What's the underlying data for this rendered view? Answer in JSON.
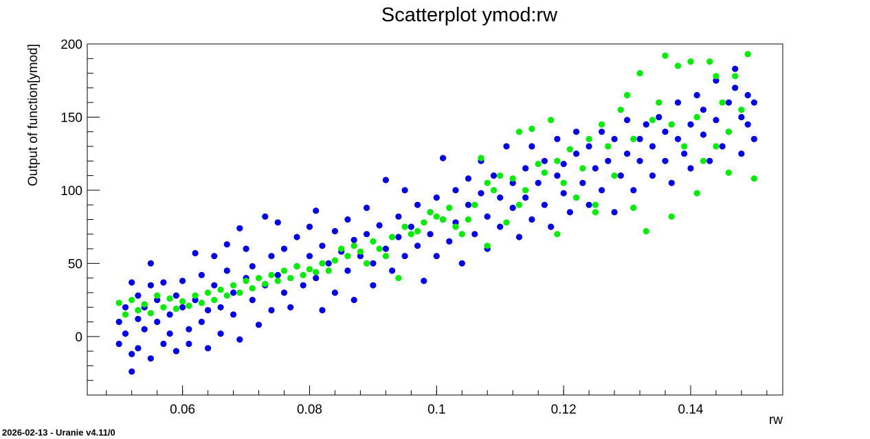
{
  "chart_data": {
    "type": "scatter",
    "title": "Scatterplot ymod:rw",
    "xlabel": "rw",
    "ylabel": "Output of function[ymod]",
    "xlim": [
      0.045,
      0.1545
    ],
    "ylim": [
      -40,
      200
    ],
    "xticks": [
      0.06,
      0.08,
      0.1,
      0.12,
      0.14
    ],
    "xtick_labels": [
      "0.06",
      "0.08",
      "0.1",
      "0.12",
      "0.14"
    ],
    "yticks": [
      0,
      50,
      100,
      150,
      200
    ],
    "ytick_labels": [
      "0",
      "50",
      "100",
      "150",
      "200"
    ],
    "grid": false,
    "legend": "none",
    "series": [
      {
        "color": "#0000ee",
        "points": [
          [
            0.05,
            10
          ],
          [
            0.05,
            -5
          ],
          [
            0.051,
            20
          ],
          [
            0.051,
            2
          ],
          [
            0.052,
            37
          ],
          [
            0.052,
            -12
          ],
          [
            0.052,
            -24
          ],
          [
            0.053,
            12
          ],
          [
            0.053,
            28
          ],
          [
            0.053,
            -8
          ],
          [
            0.054,
            5
          ],
          [
            0.054,
            20
          ],
          [
            0.055,
            50
          ],
          [
            0.055,
            -15
          ],
          [
            0.055,
            35
          ],
          [
            0.056,
            25
          ],
          [
            0.056,
            10
          ],
          [
            0.057,
            -5
          ],
          [
            0.057,
            37
          ],
          [
            0.058,
            15
          ],
          [
            0.058,
            2
          ],
          [
            0.059,
            28
          ],
          [
            0.059,
            -10
          ],
          [
            0.06,
            20
          ],
          [
            0.06,
            38
          ],
          [
            0.061,
            5
          ],
          [
            0.061,
            -5
          ],
          [
            0.062,
            57
          ],
          [
            0.062,
            25
          ],
          [
            0.063,
            10
          ],
          [
            0.063,
            42
          ],
          [
            0.064,
            18
          ],
          [
            0.064,
            -8
          ],
          [
            0.065,
            35
          ],
          [
            0.065,
            55
          ],
          [
            0.066,
            20
          ],
          [
            0.066,
            2
          ],
          [
            0.067,
            45
          ],
          [
            0.067,
            63
          ],
          [
            0.068,
            15
          ],
          [
            0.068,
            30
          ],
          [
            0.069,
            74
          ],
          [
            0.069,
            -2
          ],
          [
            0.07,
            40
          ],
          [
            0.07,
            60
          ],
          [
            0.071,
            25
          ],
          [
            0.071,
            48
          ],
          [
            0.072,
            8
          ],
          [
            0.073,
            82
          ],
          [
            0.073,
            35
          ],
          [
            0.074,
            55
          ],
          [
            0.074,
            18
          ],
          [
            0.075,
            78
          ],
          [
            0.075,
            42
          ],
          [
            0.076,
            30
          ],
          [
            0.076,
            60
          ],
          [
            0.077,
            20
          ],
          [
            0.078,
            48
          ],
          [
            0.078,
            68
          ],
          [
            0.079,
            35
          ],
          [
            0.08,
            75
          ],
          [
            0.08,
            55
          ],
          [
            0.081,
            40
          ],
          [
            0.081,
            86
          ],
          [
            0.082,
            62
          ],
          [
            0.082,
            18
          ],
          [
            0.083,
            50
          ],
          [
            0.084,
            72
          ],
          [
            0.084,
            30
          ],
          [
            0.085,
            58
          ],
          [
            0.086,
            80
          ],
          [
            0.086,
            45
          ],
          [
            0.087,
            66
          ],
          [
            0.087,
            25
          ],
          [
            0.088,
            55
          ],
          [
            0.089,
            88
          ],
          [
            0.089,
            70
          ],
          [
            0.09,
            50
          ],
          [
            0.09,
            35
          ],
          [
            0.091,
            76
          ],
          [
            0.092,
            60
          ],
          [
            0.092,
            107
          ],
          [
            0.093,
            45
          ],
          [
            0.094,
            82
          ],
          [
            0.094,
            68
          ],
          [
            0.095,
            55
          ],
          [
            0.095,
            100
          ],
          [
            0.096,
            75
          ],
          [
            0.097,
            90
          ],
          [
            0.097,
            62
          ],
          [
            0.098,
            38
          ],
          [
            0.099,
            85
          ],
          [
            0.099,
            70
          ],
          [
            0.1,
            95
          ],
          [
            0.1,
            55
          ],
          [
            0.101,
            80
          ],
          [
            0.101,
            122
          ],
          [
            0.102,
            65
          ],
          [
            0.103,
            100
          ],
          [
            0.103,
            78
          ],
          [
            0.104,
            50
          ],
          [
            0.105,
            90
          ],
          [
            0.105,
            108
          ],
          [
            0.106,
            70
          ],
          [
            0.107,
            98
          ],
          [
            0.107,
            120
          ],
          [
            0.108,
            82
          ],
          [
            0.108,
            60
          ],
          [
            0.109,
            110
          ],
          [
            0.11,
            95
          ],
          [
            0.11,
            75
          ],
          [
            0.111,
            130
          ],
          [
            0.112,
            88
          ],
          [
            0.112,
            105
          ],
          [
            0.113,
            68
          ],
          [
            0.114,
            115
          ],
          [
            0.114,
            95
          ],
          [
            0.115,
            80
          ],
          [
            0.115,
            130
          ],
          [
            0.116,
            105
          ],
          [
            0.117,
            90
          ],
          [
            0.117,
            120
          ],
          [
            0.118,
            75
          ],
          [
            0.119,
            110
          ],
          [
            0.119,
            135
          ],
          [
            0.12,
            98
          ],
          [
            0.12,
            118
          ],
          [
            0.121,
            85
          ],
          [
            0.122,
            125
          ],
          [
            0.122,
            140
          ],
          [
            0.123,
            105
          ],
          [
            0.124,
            90
          ],
          [
            0.124,
            130
          ],
          [
            0.125,
            115
          ],
          [
            0.126,
            100
          ],
          [
            0.126,
            140
          ],
          [
            0.127,
            120
          ],
          [
            0.128,
            85
          ],
          [
            0.128,
            135
          ],
          [
            0.129,
            110
          ],
          [
            0.13,
            125
          ],
          [
            0.13,
            148
          ],
          [
            0.131,
            100
          ],
          [
            0.132,
            135
          ],
          [
            0.132,
            120
          ],
          [
            0.133,
            145
          ],
          [
            0.134,
            110
          ],
          [
            0.134,
            130
          ],
          [
            0.135,
            150
          ],
          [
            0.136,
            120
          ],
          [
            0.136,
            140
          ],
          [
            0.137,
            105
          ],
          [
            0.138,
            135
          ],
          [
            0.138,
            160
          ],
          [
            0.139,
            125
          ],
          [
            0.14,
            145
          ],
          [
            0.14,
            115
          ],
          [
            0.141,
            165
          ],
          [
            0.142,
            138
          ],
          [
            0.142,
            155
          ],
          [
            0.143,
            120
          ],
          [
            0.144,
            148
          ],
          [
            0.144,
            175
          ],
          [
            0.145,
            130
          ],
          [
            0.146,
            160
          ],
          [
            0.146,
            140
          ],
          [
            0.147,
            183
          ],
          [
            0.148,
            150
          ],
          [
            0.148,
            125
          ],
          [
            0.149,
            165
          ],
          [
            0.149,
            145
          ],
          [
            0.15,
            160
          ],
          [
            0.15,
            135
          ],
          [
            0.147,
            170
          ]
        ]
      },
      {
        "color": "#00ee00",
        "points": [
          [
            0.05,
            23
          ],
          [
            0.051,
            15
          ],
          [
            0.052,
            25
          ],
          [
            0.053,
            18
          ],
          [
            0.054,
            22
          ],
          [
            0.055,
            16
          ],
          [
            0.056,
            28
          ],
          [
            0.057,
            20
          ],
          [
            0.058,
            26
          ],
          [
            0.059,
            19
          ],
          [
            0.06,
            24
          ],
          [
            0.061,
            21
          ],
          [
            0.062,
            28
          ],
          [
            0.063,
            23
          ],
          [
            0.064,
            30
          ],
          [
            0.065,
            25
          ],
          [
            0.066,
            32
          ],
          [
            0.067,
            28
          ],
          [
            0.068,
            35
          ],
          [
            0.069,
            30
          ],
          [
            0.07,
            38
          ],
          [
            0.071,
            33
          ],
          [
            0.072,
            40
          ],
          [
            0.073,
            36
          ],
          [
            0.074,
            42
          ],
          [
            0.075,
            38
          ],
          [
            0.076,
            45
          ],
          [
            0.077,
            40
          ],
          [
            0.078,
            48
          ],
          [
            0.079,
            42
          ],
          [
            0.08,
            46
          ],
          [
            0.081,
            44
          ],
          [
            0.082,
            50
          ],
          [
            0.083,
            45
          ],
          [
            0.084,
            52
          ],
          [
            0.085,
            60
          ],
          [
            0.086,
            55
          ],
          [
            0.087,
            62
          ],
          [
            0.088,
            58
          ],
          [
            0.089,
            50
          ],
          [
            0.09,
            65
          ],
          [
            0.091,
            60
          ],
          [
            0.092,
            55
          ],
          [
            0.093,
            68
          ],
          [
            0.094,
            40
          ],
          [
            0.095,
            75
          ],
          [
            0.096,
            70
          ],
          [
            0.097,
            72
          ],
          [
            0.098,
            78
          ],
          [
            0.099,
            85
          ],
          [
            0.1,
            82
          ],
          [
            0.101,
            80
          ],
          [
            0.102,
            88
          ],
          [
            0.103,
            75
          ],
          [
            0.104,
            70
          ],
          [
            0.105,
            80
          ],
          [
            0.106,
            90
          ],
          [
            0.107,
            122
          ],
          [
            0.108,
            105
          ],
          [
            0.109,
            100
          ],
          [
            0.11,
            110
          ],
          [
            0.111,
            78
          ],
          [
            0.112,
            108
          ],
          [
            0.113,
            140
          ],
          [
            0.114,
            100
          ],
          [
            0.115,
            142
          ],
          [
            0.116,
            118
          ],
          [
            0.117,
            112
          ],
          [
            0.118,
            148
          ],
          [
            0.119,
            120
          ],
          [
            0.12,
            105
          ],
          [
            0.121,
            128
          ],
          [
            0.122,
            95
          ],
          [
            0.123,
            115
          ],
          [
            0.124,
            135
          ],
          [
            0.125,
            90
          ],
          [
            0.126,
            145
          ],
          [
            0.127,
            130
          ],
          [
            0.128,
            110
          ],
          [
            0.129,
            155
          ],
          [
            0.13,
            165
          ],
          [
            0.131,
            135
          ],
          [
            0.132,
            180
          ],
          [
            0.133,
            72
          ],
          [
            0.134,
            148
          ],
          [
            0.135,
            160
          ],
          [
            0.136,
            192
          ],
          [
            0.137,
            145
          ],
          [
            0.138,
            185
          ],
          [
            0.139,
            130
          ],
          [
            0.14,
            188
          ],
          [
            0.141,
            150
          ],
          [
            0.142,
            120
          ],
          [
            0.143,
            188
          ],
          [
            0.144,
            178
          ],
          [
            0.145,
            160
          ],
          [
            0.146,
            140
          ],
          [
            0.147,
            178
          ],
          [
            0.148,
            155
          ],
          [
            0.149,
            193
          ],
          [
            0.15,
            108
          ],
          [
            0.146,
            112
          ],
          [
            0.144,
            130
          ],
          [
            0.141,
            98
          ],
          [
            0.137,
            82
          ],
          [
            0.131,
            88
          ],
          [
            0.125,
            85
          ],
          [
            0.119,
            70
          ],
          [
            0.113,
            90
          ],
          [
            0.108,
            62
          ]
        ]
      }
    ]
  },
  "footer": "2026-02-13 - Uranie v4.11/0"
}
